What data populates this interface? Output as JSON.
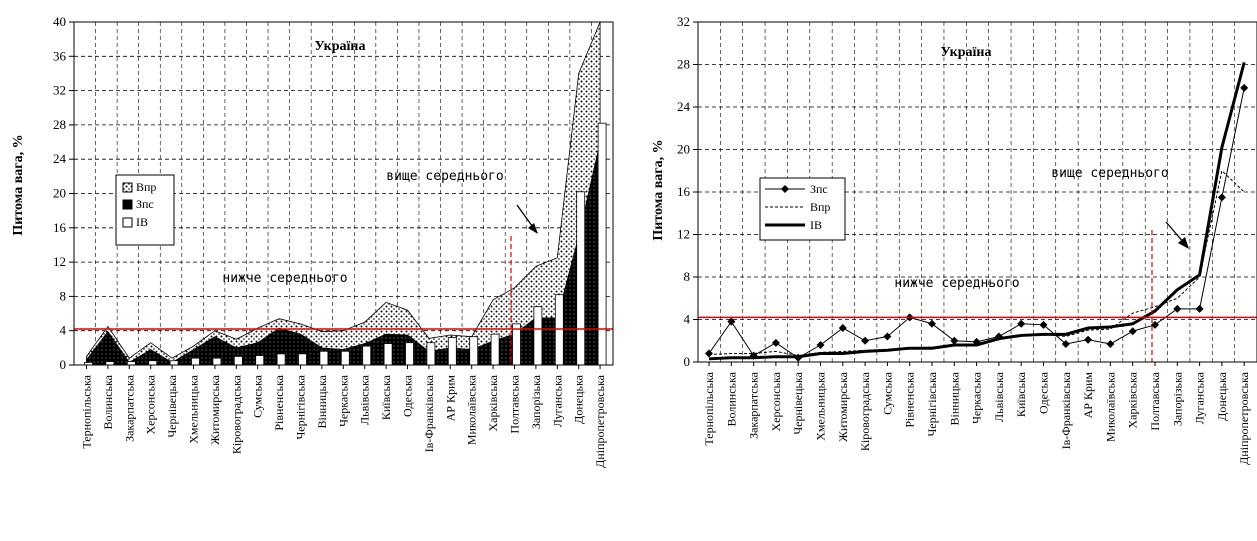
{
  "chart_data": [
    {
      "type": "area",
      "title": "Україна",
      "ylabel": "Питома вага, %",
      "xlabel": "",
      "ylim": [
        0,
        40
      ],
      "yticks": [
        0,
        4,
        8,
        12,
        16,
        20,
        24,
        28,
        32,
        36,
        40
      ],
      "grid": true,
      "legend": "left",
      "average_line": 4.2,
      "annotations": [
        "вище середнього",
        "нижче середнього"
      ],
      "categories": [
        "Тернопільська",
        "Волинська",
        "Закарпатська",
        "Херсонська",
        "Чернівецька",
        "Хмельницька",
        "Житомирська",
        "Кіровоградська",
        "Сумська",
        "Рівненська",
        "Чернігівська",
        "Вінницька",
        "Черкаська",
        "Львівська",
        "Київська",
        "Одеська",
        "Ів-Франківська",
        "АР Крим",
        "Миколаївська",
        "Харківська",
        "Полтавська",
        "Запорізька",
        "Луганська",
        "Донецька",
        "Дніпропетровська"
      ],
      "series": [
        {
          "name": "Впр",
          "style": "dotted-fill",
          "values": [
            1.0,
            4.5,
            0.8,
            2.6,
            0.8,
            2.2,
            4.0,
            3.0,
            4.3,
            5.4,
            4.8,
            3.9,
            4.0,
            5.0,
            7.3,
            6.4,
            3.1,
            3.5,
            3.3,
            7.6,
            9.0,
            11.5,
            12.5,
            34.0,
            40.0
          ]
        },
        {
          "name": "Зпс",
          "style": "black-fill",
          "values": [
            0.6,
            3.9,
            0.3,
            1.8,
            0.3,
            1.8,
            3.3,
            2.0,
            2.6,
            4.3,
            3.6,
            2.0,
            1.8,
            2.5,
            3.6,
            3.5,
            1.6,
            2.0,
            1.8,
            2.8,
            3.6,
            5.5,
            5.5,
            15.0,
            26.0
          ]
        },
        {
          "name": "ІВ",
          "style": "white-bar",
          "values": [
            0.3,
            0.4,
            0.4,
            0.5,
            0.5,
            0.8,
            0.8,
            1.0,
            1.1,
            1.3,
            1.3,
            1.6,
            1.6,
            2.2,
            2.5,
            2.6,
            2.6,
            3.2,
            3.3,
            3.6,
            4.8,
            6.8,
            8.2,
            20.2,
            28.2
          ]
        }
      ]
    },
    {
      "type": "line",
      "title": "Україна",
      "ylabel": "Питома вага, %",
      "xlabel": "",
      "ylim": [
        0,
        32
      ],
      "yticks": [
        0,
        4,
        8,
        12,
        16,
        20,
        24,
        28,
        32
      ],
      "grid": true,
      "legend": "left",
      "average_line": 4.2,
      "annotations": [
        "вище середнього",
        "нижче середнього"
      ],
      "categories": [
        "Тернопільська",
        "Волинська",
        "Закарпатська",
        "Херсонська",
        "Чернівецька",
        "Хмельницька",
        "Житомирська",
        "Кіровоградська",
        "Сумська",
        "Рівненська",
        "Чернігівська",
        "Вінницька",
        "Черкаська",
        "Львівська",
        "Київська",
        "Одеська",
        "Ів-Франківська",
        "АР Крим",
        "Миколаївська",
        "Харківська",
        "Полтавська",
        "Запорізька",
        "Луганська",
        "Донецька",
        "Дніпропетровська"
      ],
      "series": [
        {
          "name": "Зпс",
          "style": "line-diamond",
          "values": [
            0.8,
            3.8,
            0.6,
            1.8,
            0.4,
            1.6,
            3.2,
            2.0,
            2.4,
            4.2,
            3.6,
            2.0,
            1.9,
            2.4,
            3.6,
            3.5,
            1.7,
            2.1,
            1.7,
            2.9,
            3.5,
            5.0,
            5.0,
            15.5,
            25.8
          ]
        },
        {
          "name": "Впр",
          "style": "dashed",
          "values": [
            0.7,
            0.8,
            0.8,
            1.0,
            0.6,
            0.9,
            1.0,
            1.1,
            1.2,
            1.3,
            1.4,
            1.5,
            1.6,
            2.1,
            2.5,
            2.6,
            2.4,
            3.0,
            3.1,
            4.6,
            5.2,
            6.0,
            8.0,
            18.0,
            16.0
          ]
        },
        {
          "name": "ІВ",
          "style": "thick",
          "values": [
            0.3,
            0.4,
            0.4,
            0.5,
            0.5,
            0.8,
            0.8,
            1.0,
            1.1,
            1.3,
            1.3,
            1.6,
            1.6,
            2.2,
            2.5,
            2.6,
            2.6,
            3.2,
            3.3,
            3.6,
            4.8,
            6.8,
            8.2,
            20.2,
            28.2
          ]
        }
      ]
    }
  ]
}
